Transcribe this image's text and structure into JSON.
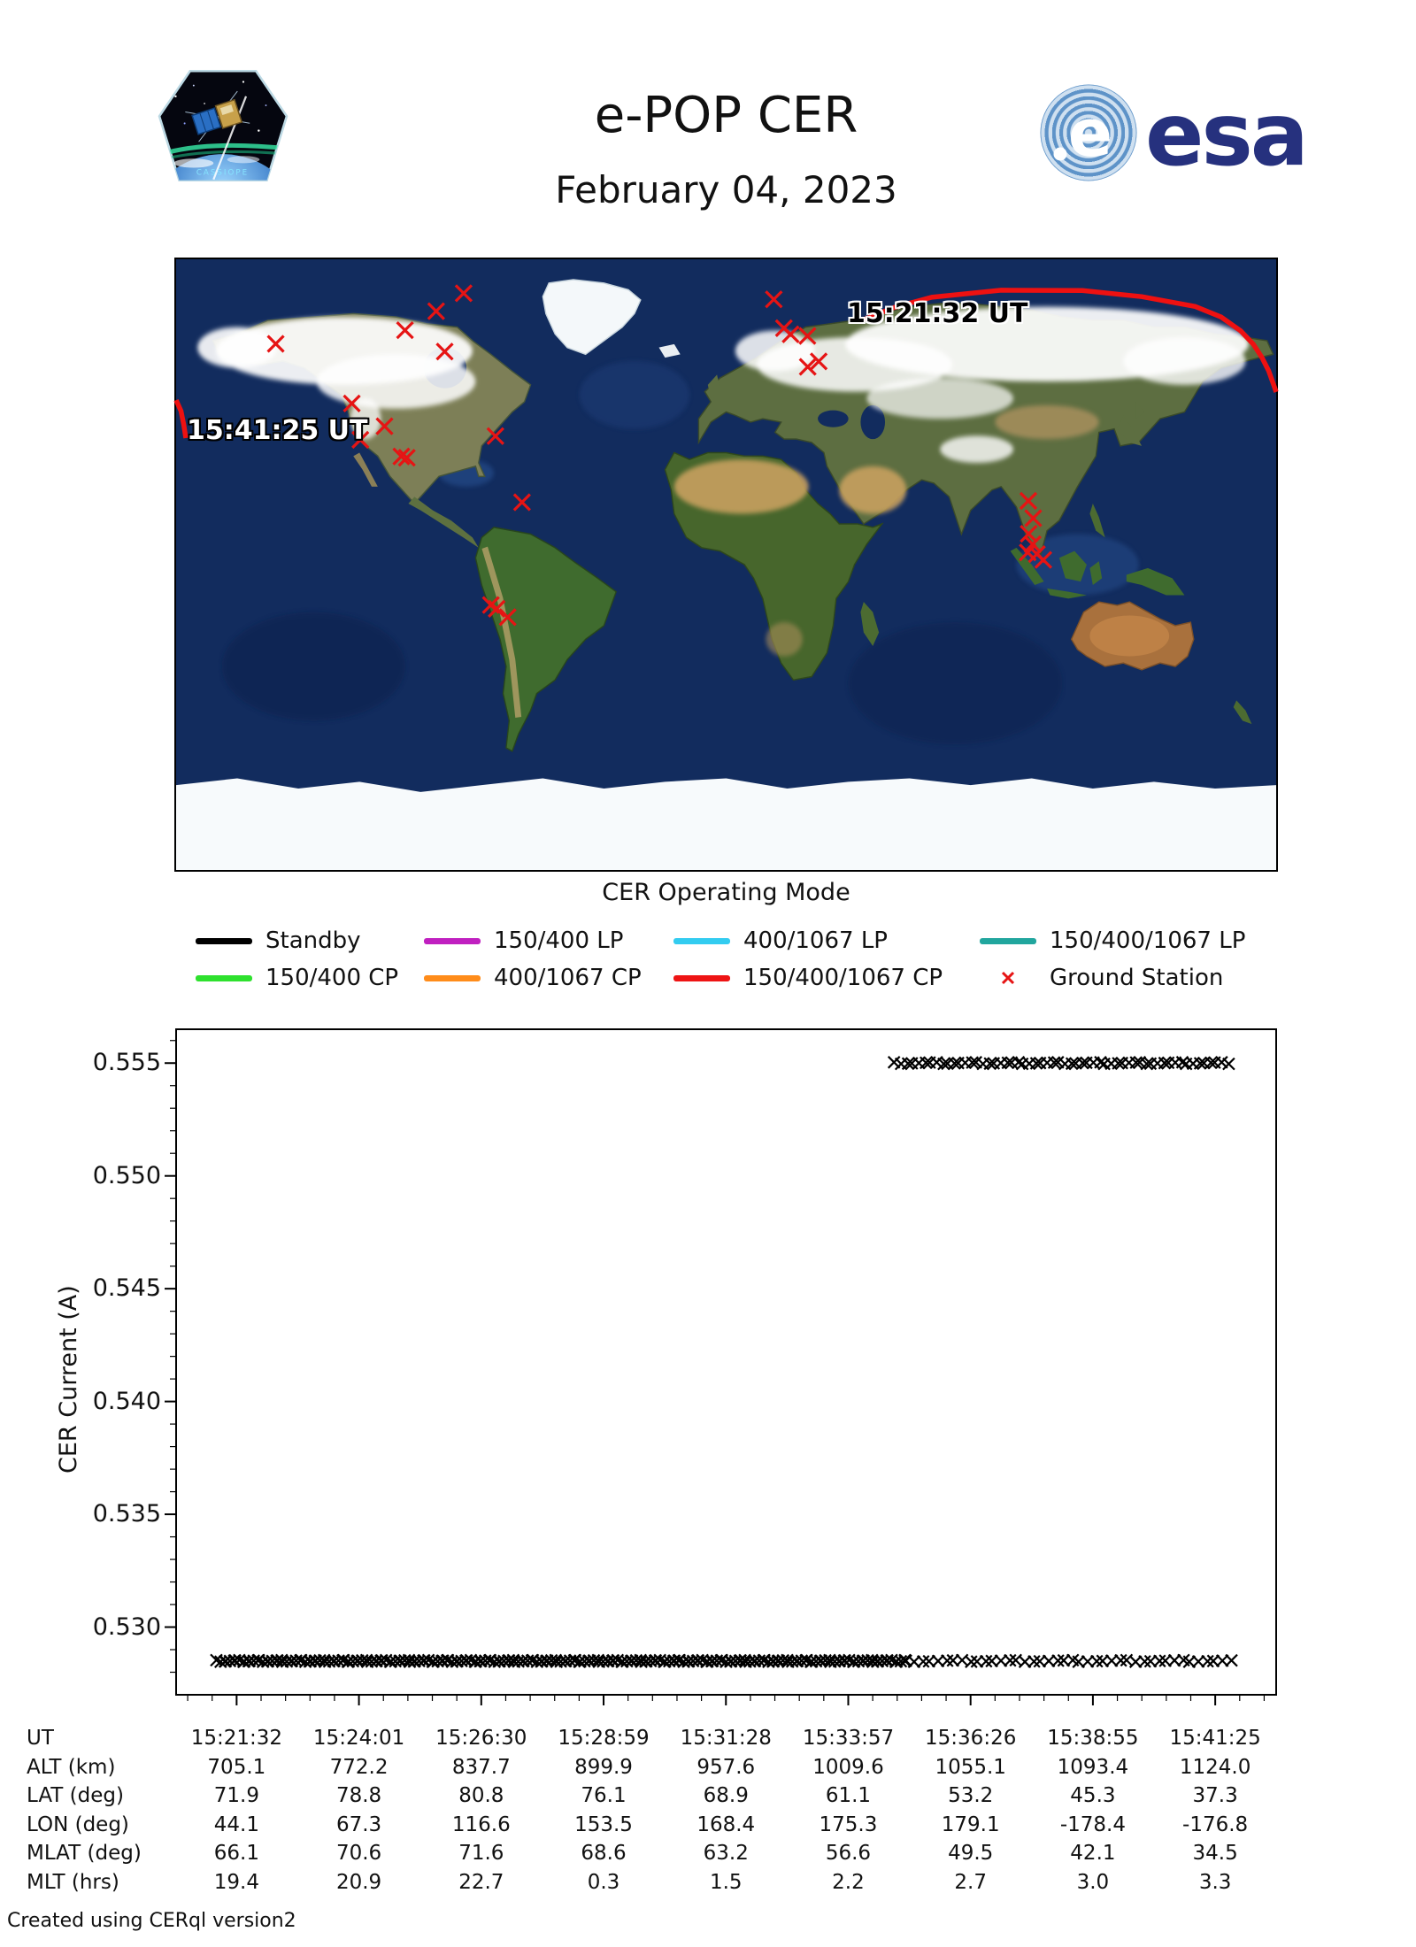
{
  "header": {
    "title": "e-POP CER",
    "date": "February 04, 2023",
    "patch_name": "CASSIOPE",
    "esa_text": "esa"
  },
  "map": {
    "start_label": "15:21:32 UT",
    "end_label": "15:41:25 UT",
    "track_color": "#ee1111",
    "station_color": "#e61414",
    "track_points": [
      [
        44.1,
        71.9
      ],
      [
        55.0,
        75.8
      ],
      [
        67.3,
        78.8
      ],
      [
        90.0,
        80.9
      ],
      [
        116.6,
        80.8
      ],
      [
        136.0,
        79.0
      ],
      [
        153.5,
        76.1
      ],
      [
        162.0,
        73.0
      ],
      [
        168.4,
        68.9
      ],
      [
        172.5,
        65.0
      ],
      [
        175.3,
        61.1
      ],
      [
        177.5,
        57.2
      ],
      [
        179.1,
        53.2
      ],
      [
        180.0,
        50.9
      ]
    ],
    "track_points_wrap": [
      [
        -180.0,
        48.5
      ],
      [
        -178.4,
        45.3
      ],
      [
        -177.5,
        41.3
      ],
      [
        -176.8,
        37.3
      ]
    ],
    "ground_stations": [
      [
        -85.9,
        80.0
      ],
      [
        -94.9,
        74.7
      ],
      [
        -105.1,
        69.1
      ],
      [
        -92.1,
        62.8
      ],
      [
        -147.4,
        65.1
      ],
      [
        -122.5,
        47.5
      ],
      [
        -111.8,
        40.8
      ],
      [
        -119.7,
        36.8
      ],
      [
        -106.3,
        31.9
      ],
      [
        -104.5,
        31.5
      ],
      [
        -75.5,
        37.9
      ],
      [
        -66.8,
        18.4
      ],
      [
        -77.0,
        -11.9
      ],
      [
        -75.1,
        -13.0
      ],
      [
        -71.5,
        -15.5
      ],
      [
        15.6,
        78.2
      ],
      [
        18.9,
        69.7
      ],
      [
        21.1,
        67.9
      ],
      [
        26.6,
        67.4
      ],
      [
        30.3,
        59.9
      ],
      [
        26.7,
        58.3
      ],
      [
        98.9,
        18.8
      ],
      [
        100.5,
        13.7
      ],
      [
        99.0,
        9.1
      ],
      [
        100.3,
        6.0
      ],
      [
        98.7,
        3.6
      ],
      [
        101.7,
        3.1
      ],
      [
        103.8,
        1.4
      ]
    ]
  },
  "legend": {
    "title": "CER Operating Mode",
    "items": [
      {
        "label": "Standby",
        "color": "#000000",
        "type": "line"
      },
      {
        "label": "150/400 LP",
        "color": "#c020c0",
        "type": "line"
      },
      {
        "label": "400/1067 LP",
        "color": "#33ccf0",
        "type": "line"
      },
      {
        "label": "150/400/1067 LP",
        "color": "#21a69e",
        "type": "line"
      },
      {
        "label": "150/400 CP",
        "color": "#2ee12e",
        "type": "line"
      },
      {
        "label": "400/1067 CP",
        "color": "#ff8c1a",
        "type": "line"
      },
      {
        "label": "150/400/1067 CP",
        "color": "#ee1414",
        "type": "line"
      },
      {
        "label": "Ground Station",
        "color": "#e61414",
        "type": "marker"
      }
    ]
  },
  "chart_data": {
    "type": "scatter",
    "title": "",
    "xlabel": "",
    "ylabel": "CER Current (A)",
    "ylim": [
      0.527,
      0.5565
    ],
    "yticks": [
      0.53,
      0.535,
      0.54,
      0.545,
      0.55,
      0.555
    ],
    "x_tick_labels": [
      "15:21:32",
      "15:24:01",
      "15:26:30",
      "15:28:59",
      "15:31:28",
      "15:33:57",
      "15:36:26",
      "15:38:55",
      "15:41:25"
    ],
    "marker": "x",
    "marker_color": "#000000",
    "grid": false,
    "legend_position": "none",
    "series": [
      {
        "name": "cer-current-low-dense",
        "y": 0.5285,
        "x_frac_start": 0.038,
        "x_frac_end": 0.664,
        "count": 230
      },
      {
        "name": "cer-current-low-sparse",
        "y": 0.5285,
        "x_frac_start": 0.664,
        "x_frac_end": 0.958,
        "count": 42
      },
      {
        "name": "cer-current-high",
        "y": 0.555,
        "x_frac_start": 0.654,
        "x_frac_end": 0.956,
        "count": 58
      }
    ]
  },
  "table": {
    "rows": [
      {
        "label": "UT",
        "values": [
          "15:21:32",
          "15:24:01",
          "15:26:30",
          "15:28:59",
          "15:31:28",
          "15:33:57",
          "15:36:26",
          "15:38:55",
          "15:41:25"
        ]
      },
      {
        "label": "ALT (km)",
        "values": [
          "705.1",
          "772.2",
          "837.7",
          "899.9",
          "957.6",
          "1009.6",
          "1055.1",
          "1093.4",
          "1124.0"
        ]
      },
      {
        "label": "LAT (deg)",
        "values": [
          "71.9",
          "78.8",
          "80.8",
          "76.1",
          "68.9",
          "61.1",
          "53.2",
          "45.3",
          "37.3"
        ]
      },
      {
        "label": "LON (deg)",
        "values": [
          "44.1",
          "67.3",
          "116.6",
          "153.5",
          "168.4",
          "175.3",
          "179.1",
          "-178.4",
          "-176.8"
        ]
      },
      {
        "label": "MLAT (deg)",
        "values": [
          "66.1",
          "70.6",
          "71.6",
          "68.6",
          "63.2",
          "56.6",
          "49.5",
          "42.1",
          "34.5"
        ]
      },
      {
        "label": "MLT (hrs)",
        "values": [
          "19.4",
          "20.9",
          "22.7",
          "0.3",
          "1.5",
          "2.2",
          "2.7",
          "3.0",
          "3.3"
        ]
      }
    ]
  },
  "footer": {
    "credit": "Created using CERql version2"
  }
}
